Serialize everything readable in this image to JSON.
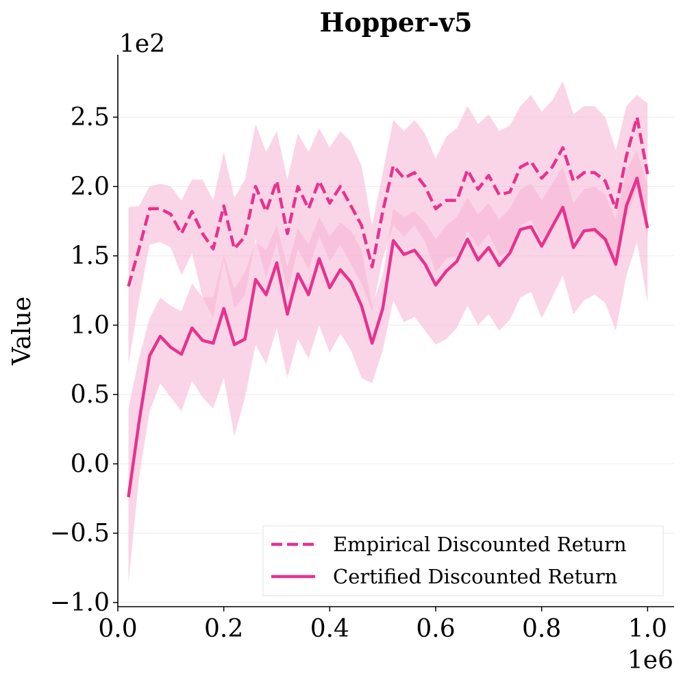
{
  "chart_data": {
    "type": "line",
    "title": "Hopper-v5",
    "xlabel": "",
    "ylabel": "Value",
    "x_offset_label": "1e6",
    "y_offset_label": "1e2",
    "xlim": [
      0.0,
      1.05
    ],
    "ylim": [
      -1.03,
      2.95
    ],
    "xticks": [
      0.0,
      0.2,
      0.4,
      0.6,
      0.8,
      1.0
    ],
    "xtick_labels": [
      "0.0",
      "0.2",
      "0.4",
      "0.6",
      "0.8",
      "1.0"
    ],
    "yticks": [
      -1.0,
      -0.5,
      0.0,
      0.5,
      1.0,
      1.5,
      2.0,
      2.5
    ],
    "ytick_labels": [
      "−1.0",
      "−0.5",
      "0.0",
      "0.5",
      "1.0",
      "1.5",
      "2.0",
      "2.5"
    ],
    "grid": "horizontal, faint",
    "legend_position": "lower-right",
    "color": "#e8318f",
    "band_color": "#f6b3d3",
    "x": [
      0.02,
      0.04,
      0.06,
      0.08,
      0.1,
      0.12,
      0.14,
      0.16,
      0.18,
      0.2,
      0.22,
      0.24,
      0.26,
      0.28,
      0.3,
      0.32,
      0.34,
      0.36,
      0.38,
      0.4,
      0.42,
      0.44,
      0.46,
      0.48,
      0.5,
      0.52,
      0.54,
      0.56,
      0.58,
      0.6,
      0.62,
      0.64,
      0.66,
      0.68,
      0.7,
      0.72,
      0.74,
      0.76,
      0.78,
      0.8,
      0.82,
      0.84,
      0.86,
      0.88,
      0.9,
      0.92,
      0.94,
      0.96,
      0.98,
      1.0
    ],
    "series": [
      {
        "name": "Empirical Discounted Return",
        "dash": "dashed",
        "values": [
          1.28,
          1.55,
          1.84,
          1.84,
          1.8,
          1.66,
          1.82,
          1.66,
          1.55,
          1.86,
          1.55,
          1.64,
          2.0,
          1.82,
          2.04,
          1.66,
          2.0,
          1.84,
          2.04,
          1.88,
          2.0,
          1.86,
          1.72,
          1.42,
          1.82,
          2.15,
          2.06,
          2.1,
          2.0,
          1.84,
          1.9,
          1.9,
          2.12,
          1.98,
          2.08,
          1.94,
          1.96,
          2.14,
          2.18,
          2.06,
          2.14,
          2.28,
          2.04,
          2.1,
          2.1,
          2.04,
          1.84,
          2.22,
          2.5,
          2.09
        ],
        "lower": [
          0.72,
          1.18,
          1.58,
          1.6,
          1.56,
          1.36,
          1.52,
          1.2,
          1.05,
          1.48,
          1.12,
          1.22,
          1.62,
          1.34,
          1.6,
          1.24,
          1.55,
          1.4,
          1.64,
          1.46,
          1.58,
          1.44,
          1.3,
          1.1,
          1.48,
          1.72,
          1.64,
          1.72,
          1.6,
          1.38,
          1.48,
          1.5,
          1.68,
          1.56,
          1.66,
          1.5,
          1.54,
          1.72,
          1.76,
          1.62,
          1.7,
          1.84,
          1.62,
          1.68,
          1.66,
          1.6,
          1.4,
          1.78,
          1.98,
          1.62
        ],
        "upper": [
          1.85,
          1.86,
          2.0,
          2.02,
          2.0,
          1.9,
          2.05,
          2.05,
          1.9,
          2.25,
          1.92,
          2.05,
          2.45,
          2.25,
          2.4,
          2.05,
          2.38,
          2.25,
          2.42,
          2.28,
          2.4,
          2.32,
          2.15,
          1.72,
          2.1,
          2.48,
          2.4,
          2.48,
          2.38,
          2.2,
          2.36,
          2.42,
          2.58,
          2.45,
          2.52,
          2.4,
          2.44,
          2.58,
          2.66,
          2.54,
          2.62,
          2.76,
          2.52,
          2.58,
          2.58,
          2.5,
          2.26,
          2.58,
          2.66,
          2.6
        ]
      },
      {
        "name": "Certified Discounted Return",
        "dash": "solid",
        "values": [
          -0.24,
          0.3,
          0.78,
          0.92,
          0.84,
          0.79,
          0.98,
          0.89,
          0.87,
          1.12,
          0.86,
          0.9,
          1.33,
          1.22,
          1.45,
          1.08,
          1.37,
          1.22,
          1.48,
          1.27,
          1.4,
          1.31,
          1.14,
          0.87,
          1.12,
          1.61,
          1.51,
          1.54,
          1.44,
          1.29,
          1.39,
          1.46,
          1.62,
          1.47,
          1.56,
          1.43,
          1.52,
          1.69,
          1.71,
          1.57,
          1.71,
          1.85,
          1.56,
          1.68,
          1.69,
          1.62,
          1.44,
          1.86,
          2.06,
          1.7
        ],
        "lower": [
          -0.86,
          -0.1,
          0.38,
          0.58,
          0.48,
          0.38,
          0.6,
          0.48,
          0.4,
          0.62,
          0.2,
          0.48,
          0.86,
          0.72,
          0.98,
          0.62,
          0.9,
          0.76,
          1.0,
          0.8,
          0.94,
          0.82,
          0.62,
          0.58,
          0.82,
          1.18,
          1.02,
          1.06,
          0.96,
          0.86,
          0.9,
          0.98,
          1.14,
          1.0,
          1.08,
          0.96,
          1.04,
          1.2,
          1.24,
          1.05,
          1.2,
          1.36,
          1.08,
          1.18,
          1.22,
          1.16,
          0.96,
          1.36,
          1.6,
          1.16
        ],
        "upper": [
          0.4,
          0.76,
          1.05,
          1.2,
          1.14,
          1.1,
          1.3,
          1.2,
          1.2,
          1.5,
          1.26,
          1.38,
          1.6,
          1.54,
          1.72,
          1.42,
          1.7,
          1.58,
          1.78,
          1.64,
          1.74,
          1.68,
          1.54,
          1.14,
          1.36,
          1.84,
          1.78,
          1.82,
          1.74,
          1.62,
          1.72,
          1.78,
          1.92,
          1.8,
          1.88,
          1.76,
          1.84,
          1.98,
          2.02,
          1.9,
          2.02,
          2.14,
          1.88,
          1.98,
          2.0,
          1.94,
          1.76,
          2.12,
          2.26,
          2.0
        ]
      }
    ]
  }
}
